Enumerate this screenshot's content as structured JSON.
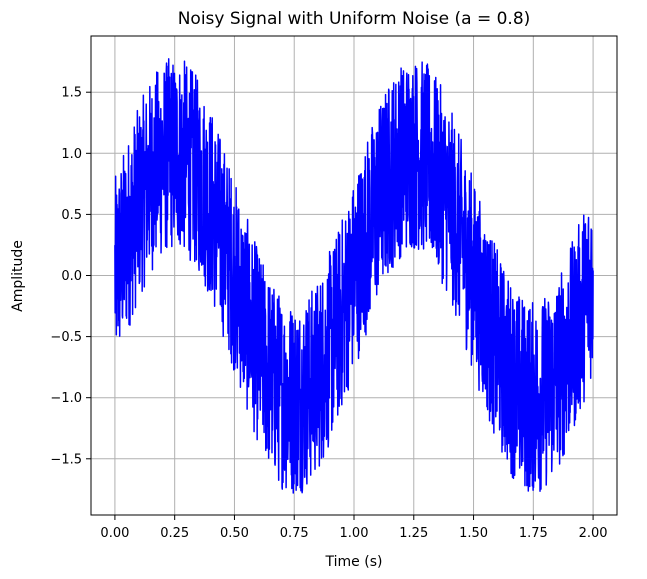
{
  "chart_data": {
    "type": "line",
    "title": "Noisy Signal with Uniform Noise (a = 0.8)",
    "xlabel": "Time (s)",
    "ylabel": "Amplitude",
    "xlim": [
      -0.1,
      2.1
    ],
    "ylim": [
      -1.96,
      1.96
    ],
    "xticks": [
      0.0,
      0.25,
      0.5,
      0.75,
      1.0,
      1.25,
      1.5,
      1.75,
      2.0
    ],
    "xtick_labels": [
      "0.00",
      "0.25",
      "0.50",
      "0.75",
      "1.00",
      "1.25",
      "1.50",
      "1.75",
      "2.00"
    ],
    "yticks": [
      -1.5,
      -1.0,
      -0.5,
      0.0,
      0.5,
      1.0,
      1.5
    ],
    "ytick_labels": [
      "−1.5",
      "−1.0",
      "−0.5",
      "0.0",
      "0.5",
      "1.0",
      "1.5"
    ],
    "grid": true,
    "series": [
      {
        "color": "#0000ff",
        "signal": "sin(2*pi*1*t) + uniform(-0.8, 0.8)",
        "t_range": [
          0.0,
          2.0
        ],
        "envelope": {
          "t": [
            0.0,
            0.25,
            0.5,
            0.75,
            1.0,
            1.25,
            1.5,
            1.75,
            2.0
          ],
          "center": [
            0.0,
            1.0,
            0.0,
            -1.0,
            0.0,
            1.0,
            0.0,
            -1.0,
            0.0
          ],
          "noise_amplitude": 0.8
        }
      }
    ]
  }
}
